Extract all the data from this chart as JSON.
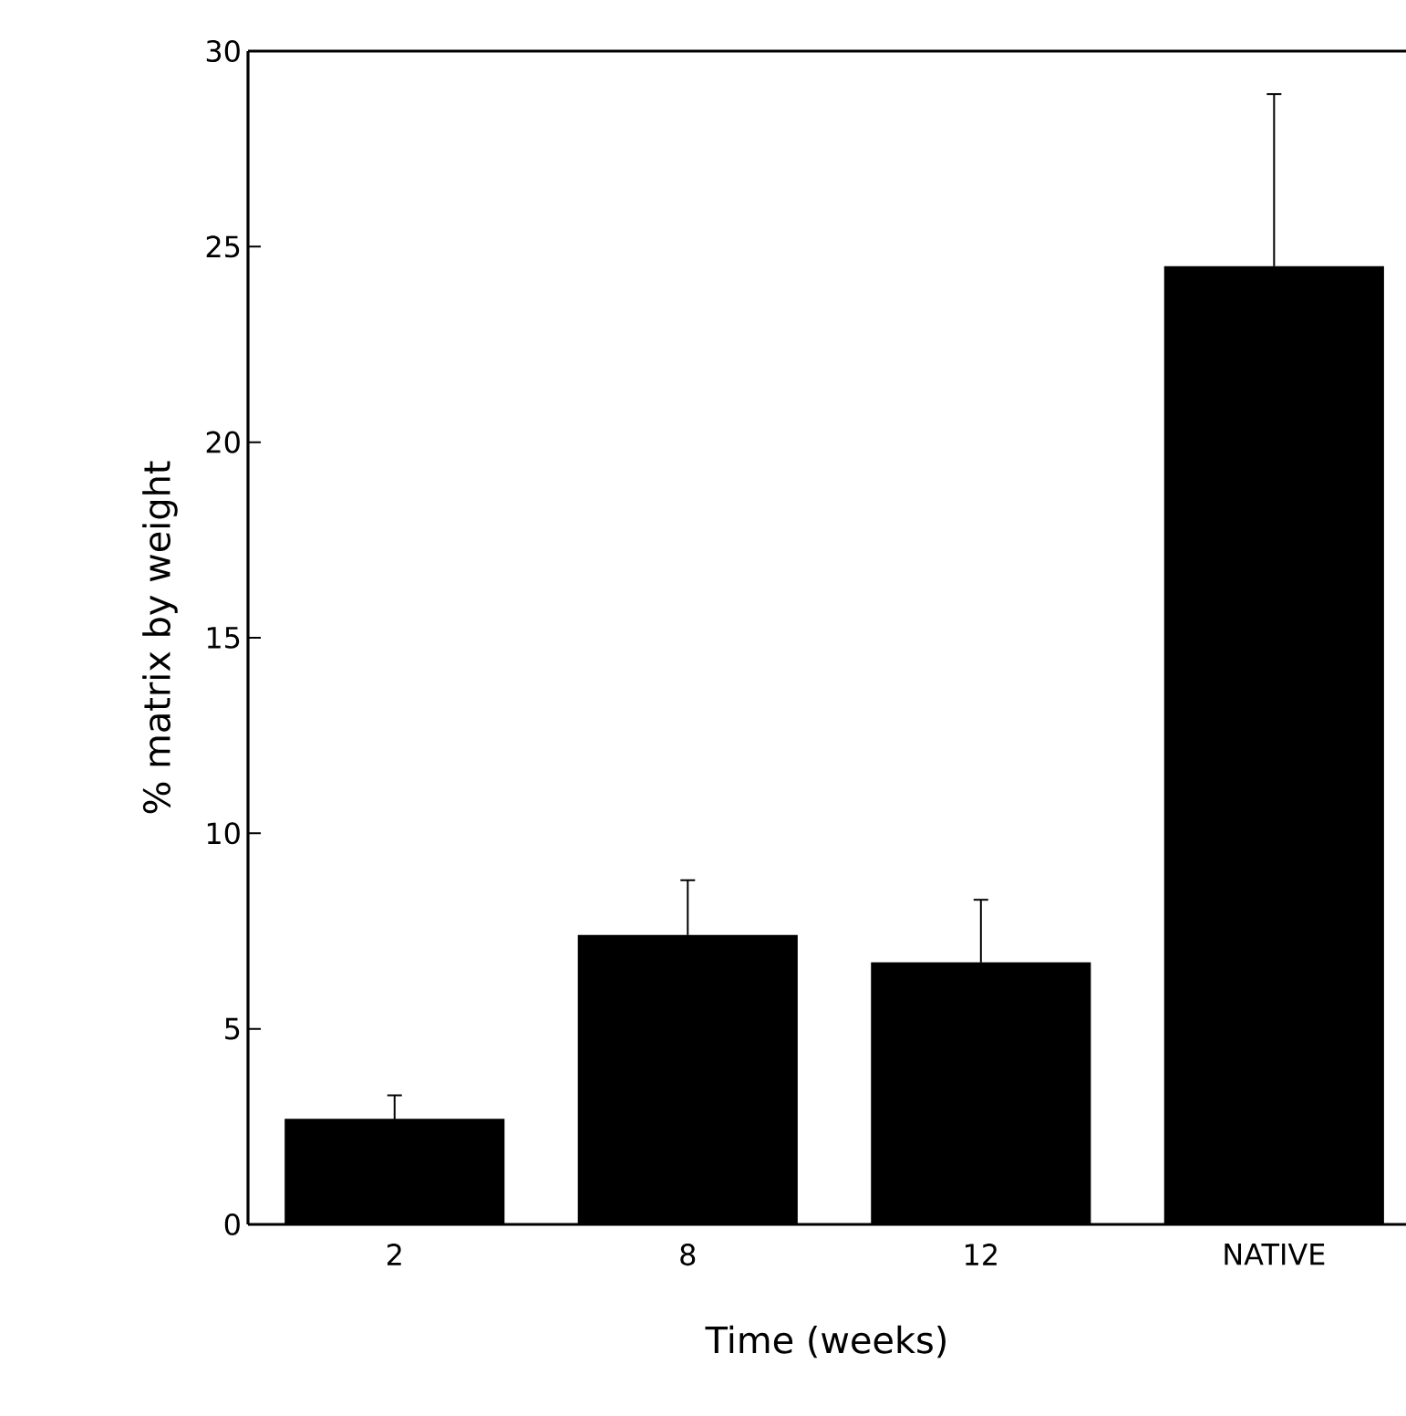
{
  "chart_data": {
    "type": "bar",
    "xlabel": "Time (weeks)",
    "ylabel": "% matrix by weight",
    "categories": [
      "2",
      "8",
      "12",
      "NATIVE"
    ],
    "values": [
      2.7,
      7.4,
      6.7,
      24.5
    ],
    "errors": [
      0.6,
      1.4,
      1.6,
      4.4
    ],
    "color": "#000000",
    "ylim": [
      0,
      30
    ],
    "yticks": [
      0,
      5,
      10,
      15,
      20,
      25,
      30
    ],
    "grid": false
  }
}
